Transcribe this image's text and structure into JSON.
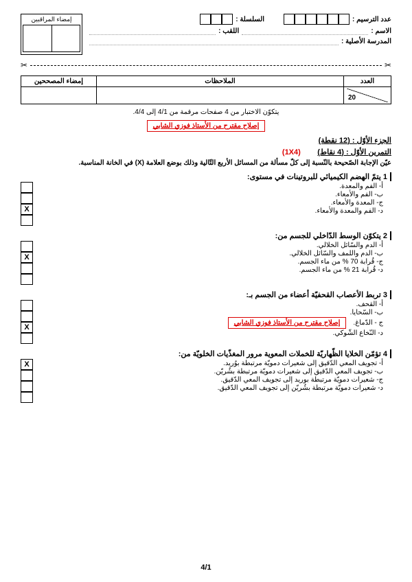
{
  "header": {
    "tarassim_label": "عدد الترسيم :",
    "silsila_label": "السلسلة :",
    "name_label": "الاسم :",
    "surname_label": "اللقب :",
    "school_label": "المدرسة الأصلية :",
    "supervisor_sig": "إمضاء المراقبين"
  },
  "grade_table": {
    "col_number": "العدد",
    "col_notes": "الملاحظات",
    "col_sig": "إمضاء المصححين",
    "total": "20"
  },
  "page_note": "يتكوّن الاختبار من 4 صفحات مرقمة من 4/1 إلى 4/4.",
  "red_notice": "إصلاح مقترح من الأستاذ فوزي الشابي",
  "part1_title": "الجزء الأوّل : (12 نقطة)",
  "ex1_title": "التمرين الأوّل : (4 نقاط)",
  "ex1_marks": "(1X4)",
  "ex1_instruction": "عيّن الإجابة الصّحيحة بالنّسبة إلى كلّ مسألة من المسائل الأربع التّالية وذلك بوضع العلامة (X) في الخانة المناسبة.",
  "questions": [
    {
      "num": "1",
      "title": "يتمّ الهضم الكيميائي للبروتينات في مستوى:",
      "options": [
        "أ- الفم والمعدة.",
        "ب- الفم والأمعاء.",
        "ج- المعدة والأمعاء.",
        "د- الفم والمعدة والأمعاء."
      ],
      "answer_index": 2
    },
    {
      "num": "2",
      "title": "يتكوّن الوسط الدّاخلي للجسم من:",
      "options": [
        "أ-  الدم والسّائل الخلالي.",
        "ب- الدم واللمف والسّائل الخلالي.",
        "ج- قُرابة 70 % من ماء الجسم.",
        "د- قُرابة 21 % من ماء الجسم."
      ],
      "answer_index": 1
    },
    {
      "num": "3",
      "title": "تربط الأعصاب القحفيّة أعضاء من الجسم بـ:",
      "options": [
        "أ-   القحف.",
        "ب- السّحايا.",
        "ج - الدّماغ.",
        "د- النّخاع الشّوكي."
      ],
      "answer_index": 2,
      "inline_red": true
    },
    {
      "num": "4",
      "title": "تؤمّن الخلايا الظّهاريّة للخملات المعوية مرور المغذّيات الخلويّة من:",
      "options": [
        "أ-  تجويف المعي الدّقيق إلى شعيرات دمويّة مرتبطة بوُريد.",
        "ب- تجويف المعي الدّقيق إلى شعيرات دمويّة مرتبطة بشُريّن.",
        "ج- شعيرات دمويّة مرتبطة بوريد إلى تجويف المعي الدّقيق.",
        "د-  شعيرات دمويّة مرتبطة بشُريّن إلى تجويف المعي الدّقيق."
      ],
      "answer_index": 0
    }
  ],
  "footer_page": "4/1",
  "colors": {
    "red": "#d00000",
    "black": "#000000"
  }
}
